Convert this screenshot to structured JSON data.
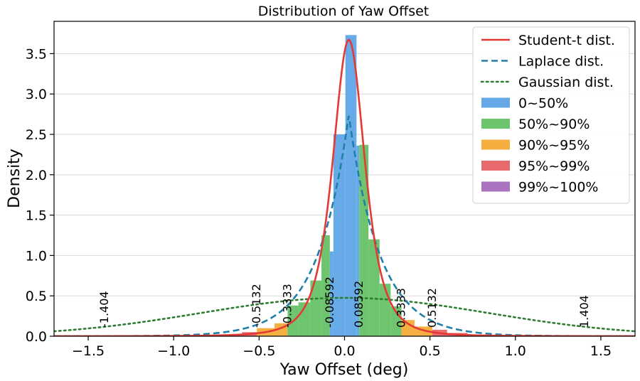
{
  "chart_data": {
    "type": "bar",
    "title": "Distribution of Yaw Offset",
    "xlabel": "Yaw Offset (deg)",
    "ylabel": "Density",
    "xlim": [
      -1.7,
      1.7
    ],
    "ylim": [
      0,
      3.9
    ],
    "xticks": [
      -1.5,
      -1.0,
      -0.5,
      0.0,
      0.5,
      1.0,
      1.5
    ],
    "xtick_labels": [
      "−1.5",
      "−1.0",
      "−0.5",
      "0.0",
      "0.5",
      "1.0",
      "1.5"
    ],
    "yticks": [
      0.0,
      0.5,
      1.0,
      1.5,
      2.0,
      2.5,
      3.0,
      3.5
    ],
    "ytick_labels": [
      "0.0",
      "0.5",
      "1.0",
      "1.5",
      "2.0",
      "2.5",
      "3.0",
      "3.5"
    ],
    "grid": "horizontal",
    "legend_position": "top-right",
    "colors": {
      "student_t": "#e53935",
      "laplace": "#1f7fa8",
      "gaussian": "#2e7d32",
      "band_0_50": "#64a8e8",
      "band_50_90": "#6cc46c",
      "band_90_95": "#f5ad3d",
      "band_95_99": "#e8696b",
      "band_99_100": "#ab72c0"
    },
    "legend": {
      "student_t": "Student-t dist.",
      "laplace": "Laplace dist.",
      "gaussian": "Gaussian dist.",
      "band_0_50": "0~50%",
      "band_50_90": "50%~90%",
      "band_90_95": "90%~95%",
      "band_95_99": "95%~99%",
      "band_99_100": "99%~100%"
    },
    "histogram": [
      {
        "x0": -1.2,
        "x1": -1.1,
        "density": 0.003,
        "band": "band_99_100"
      },
      {
        "x0": -1.0,
        "x1": -0.9,
        "density": 0.006,
        "band": "band_99_100"
      },
      {
        "x0": -0.8,
        "x1": -0.72,
        "density": 0.01,
        "band": "band_99_100"
      },
      {
        "x0": -0.72,
        "x1": -0.6,
        "density": 0.02,
        "band": "band_95_99"
      },
      {
        "x0": -0.6,
        "x1": -0.5132,
        "density": 0.05,
        "band": "band_95_99"
      },
      {
        "x0": -0.5132,
        "x1": -0.41,
        "density": 0.1,
        "band": "band_90_95"
      },
      {
        "x0": -0.41,
        "x1": -0.3333,
        "density": 0.16,
        "band": "band_90_95"
      },
      {
        "x0": -0.3333,
        "x1": -0.27,
        "density": 0.38,
        "band": "band_50_90"
      },
      {
        "x0": -0.27,
        "x1": -0.2,
        "density": 0.42,
        "band": "band_50_90"
      },
      {
        "x0": -0.2,
        "x1": -0.135,
        "density": 0.69,
        "band": "band_50_90"
      },
      {
        "x0": -0.135,
        "x1": -0.08592,
        "density": 1.25,
        "band": "band_50_90"
      },
      {
        "x0": -0.08592,
        "x1": -0.065,
        "density": 1.05,
        "band": "band_0_50"
      },
      {
        "x0": -0.065,
        "x1": 0.005,
        "density": 2.5,
        "band": "band_0_50"
      },
      {
        "x0": 0.005,
        "x1": 0.07,
        "density": 3.73,
        "band": "band_0_50"
      },
      {
        "x0": 0.07,
        "x1": 0.08592,
        "density": 2.36,
        "band": "band_0_50"
      },
      {
        "x0": 0.08592,
        "x1": 0.14,
        "density": 2.37,
        "band": "band_50_90"
      },
      {
        "x0": 0.14,
        "x1": 0.205,
        "density": 1.2,
        "band": "band_50_90"
      },
      {
        "x0": 0.205,
        "x1": 0.27,
        "density": 0.65,
        "band": "band_50_90"
      },
      {
        "x0": 0.27,
        "x1": 0.3333,
        "density": 0.37,
        "band": "band_50_90"
      },
      {
        "x0": 0.3333,
        "x1": 0.41,
        "density": 0.2,
        "band": "band_90_95"
      },
      {
        "x0": 0.41,
        "x1": 0.5132,
        "density": 0.12,
        "band": "band_90_95"
      },
      {
        "x0": 0.5132,
        "x1": 0.6,
        "density": 0.08,
        "band": "band_95_99"
      },
      {
        "x0": 0.6,
        "x1": 0.72,
        "density": 0.04,
        "band": "band_95_99"
      },
      {
        "x0": 0.72,
        "x1": 0.85,
        "density": 0.015,
        "band": "band_99_100"
      },
      {
        "x0": 1.0,
        "x1": 1.1,
        "density": 0.006,
        "band": "band_99_100"
      },
      {
        "x0": 1.3,
        "x1": 1.4,
        "density": 0.003,
        "band": "band_99_100"
      }
    ],
    "curves": {
      "student_t": {
        "loc": 0.025,
        "scale": 0.1,
        "df": 2.8,
        "peak": 3.67
      },
      "laplace": {
        "loc": 0.025,
        "b": 0.182,
        "peak": 2.74
      },
      "gaussian": {
        "loc": 0.0,
        "sigma": 0.84,
        "peak": 0.475
      }
    },
    "thresholds": [
      {
        "x": -1.404,
        "label": "-1.404",
        "label_y": 0.28
      },
      {
        "x": -0.5132,
        "label": "-0.5132",
        "label_y": 0.64
      },
      {
        "x": -0.3333,
        "label": "-0.3333",
        "label_y": 0.65
      },
      {
        "x": -0.08592,
        "label": "-0.08592",
        "label_y": 0.78
      },
      {
        "x": 0.08592,
        "label": "0.08592",
        "label_y": 0.77
      },
      {
        "x": 0.3333,
        "label": "0.3333",
        "label_y": 0.62
      },
      {
        "x": 0.5132,
        "label": "0.5132",
        "label_y": 0.62
      },
      {
        "x": 1.404,
        "label": "1.404",
        "label_y": 0.27
      }
    ]
  }
}
